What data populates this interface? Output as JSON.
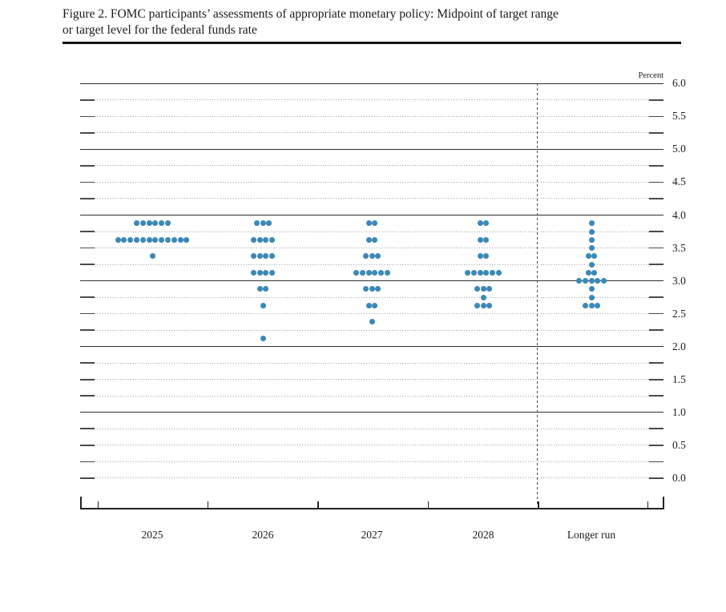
{
  "figure": {
    "title_lines": [
      "Figure 2. FOMC participants’ assessments of appropriate monetary policy: Midpoint of target range",
      "or target level for the federal funds rate"
    ]
  },
  "chart_data": {
    "type": "scatter",
    "title": "Figure 2. FOMC participants’ assessments of appropriate monetary policy: Midpoint of target range or target level for the federal funds rate",
    "xlabel": "",
    "ylabel": "Percent",
    "ylim": [
      0.0,
      6.0
    ],
    "y_labeled_tick_step": 0.5,
    "y_gridline_step": 0.25,
    "grid": "dotted lines every 0.25 percent with solid lines at each whole percent; labels on right every 0.5",
    "legend_position": "none",
    "y_axis_labels": [
      "6.0",
      "5.5",
      "5.0",
      "4.5",
      "4.0",
      "3.5",
      "3.0",
      "2.5",
      "2.0",
      "1.5",
      "1.0",
      "0.5",
      "0.0"
    ],
    "solid_gridline_values": [
      6.0,
      5.0,
      4.0,
      3.0,
      2.0,
      1.0
    ],
    "categories": [
      "2025",
      "2026",
      "2027",
      "2028",
      "Longer run"
    ],
    "separator_before_category": "Longer run",
    "dot_color": "#2e7cab",
    "series": [
      {
        "name": "2025",
        "dots": [
          {
            "rate": 3.875,
            "count": 6
          },
          {
            "rate": 3.625,
            "count": 12
          },
          {
            "rate": 3.375,
            "count": 1
          }
        ]
      },
      {
        "name": "2026",
        "dots": [
          {
            "rate": 3.875,
            "count": 3
          },
          {
            "rate": 3.625,
            "count": 4
          },
          {
            "rate": 3.375,
            "count": 4
          },
          {
            "rate": 3.125,
            "count": 4
          },
          {
            "rate": 2.875,
            "count": 2
          },
          {
            "rate": 2.625,
            "count": 1
          },
          {
            "rate": 2.125,
            "count": 1
          }
        ]
      },
      {
        "name": "2027",
        "dots": [
          {
            "rate": 3.875,
            "count": 2
          },
          {
            "rate": 3.625,
            "count": 2
          },
          {
            "rate": 3.375,
            "count": 3
          },
          {
            "rate": 3.125,
            "count": 6
          },
          {
            "rate": 2.875,
            "count": 3
          },
          {
            "rate": 2.625,
            "count": 2
          },
          {
            "rate": 2.375,
            "count": 1
          }
        ]
      },
      {
        "name": "2028",
        "dots": [
          {
            "rate": 3.875,
            "count": 2
          },
          {
            "rate": 3.625,
            "count": 2
          },
          {
            "rate": 3.375,
            "count": 2
          },
          {
            "rate": 3.125,
            "count": 6
          },
          {
            "rate": 2.875,
            "count": 3
          },
          {
            "rate": 2.75,
            "count": 1
          },
          {
            "rate": 2.625,
            "count": 3
          }
        ]
      },
      {
        "name": "Longer run",
        "dots": [
          {
            "rate": 3.875,
            "count": 1
          },
          {
            "rate": 3.75,
            "count": 1
          },
          {
            "rate": 3.625,
            "count": 1
          },
          {
            "rate": 3.5,
            "count": 1
          },
          {
            "rate": 3.375,
            "count": 2
          },
          {
            "rate": 3.25,
            "count": 1
          },
          {
            "rate": 3.125,
            "count": 2
          },
          {
            "rate": 3.0,
            "count": 5
          },
          {
            "rate": 2.875,
            "count": 1
          },
          {
            "rate": 2.75,
            "count": 1
          },
          {
            "rate": 2.625,
            "count": 3
          }
        ]
      }
    ]
  }
}
